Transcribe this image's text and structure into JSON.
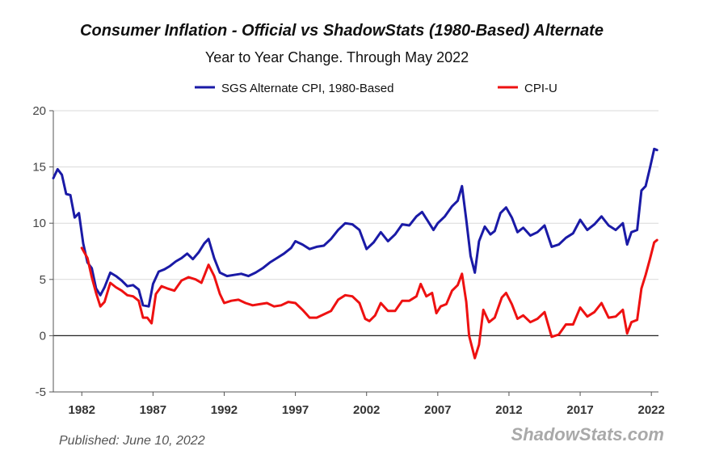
{
  "chart_data": {
    "type": "line",
    "title": "Consumer Inflation - Official vs ShadowStats (1980-Based) Alternate",
    "subtitle": "Year to Year Change. Through May 2022",
    "xlabel": "",
    "ylabel": "",
    "xlim": [
      1980.0,
      2022.5
    ],
    "ylim": [
      -5,
      20
    ],
    "y_ticks": [
      -5,
      0,
      5,
      10,
      15,
      20
    ],
    "x_ticks": [
      1982,
      1987,
      1992,
      1997,
      2002,
      2007,
      2012,
      2017,
      2022
    ],
    "grid": true,
    "legend_position": "top",
    "series": [
      {
        "name": "SGS Alternate CPI, 1980-Based",
        "color": "#1a1aa6",
        "points": [
          [
            1980.0,
            14.0
          ],
          [
            1980.3,
            14.8
          ],
          [
            1980.6,
            14.3
          ],
          [
            1980.9,
            12.6
          ],
          [
            1981.2,
            12.5
          ],
          [
            1981.5,
            10.5
          ],
          [
            1981.8,
            10.9
          ],
          [
            1982.1,
            8.2
          ],
          [
            1982.4,
            6.5
          ],
          [
            1982.7,
            6.0
          ],
          [
            1983.0,
            4.2
          ],
          [
            1983.3,
            3.6
          ],
          [
            1983.6,
            4.3
          ],
          [
            1984.0,
            5.6
          ],
          [
            1984.4,
            5.3
          ],
          [
            1984.8,
            4.9
          ],
          [
            1985.2,
            4.4
          ],
          [
            1985.6,
            4.5
          ],
          [
            1986.0,
            4.1
          ],
          [
            1986.3,
            2.7
          ],
          [
            1986.7,
            2.6
          ],
          [
            1987.0,
            4.6
          ],
          [
            1987.4,
            5.7
          ],
          [
            1987.8,
            5.9
          ],
          [
            1988.2,
            6.2
          ],
          [
            1988.6,
            6.6
          ],
          [
            1989.0,
            6.9
          ],
          [
            1989.4,
            7.3
          ],
          [
            1989.8,
            6.8
          ],
          [
            1990.2,
            7.4
          ],
          [
            1990.6,
            8.2
          ],
          [
            1990.9,
            8.6
          ],
          [
            1991.3,
            6.9
          ],
          [
            1991.7,
            5.6
          ],
          [
            1992.2,
            5.3
          ],
          [
            1992.7,
            5.4
          ],
          [
            1993.2,
            5.5
          ],
          [
            1993.7,
            5.3
          ],
          [
            1994.2,
            5.6
          ],
          [
            1994.7,
            6.0
          ],
          [
            1995.2,
            6.5
          ],
          [
            1995.7,
            6.9
          ],
          [
            1996.2,
            7.3
          ],
          [
            1996.7,
            7.8
          ],
          [
            1997.0,
            8.4
          ],
          [
            1997.5,
            8.1
          ],
          [
            1998.0,
            7.7
          ],
          [
            1998.5,
            7.9
          ],
          [
            1999.0,
            8.0
          ],
          [
            1999.5,
            8.6
          ],
          [
            2000.0,
            9.4
          ],
          [
            2000.5,
            10.0
          ],
          [
            2001.0,
            9.9
          ],
          [
            2001.5,
            9.4
          ],
          [
            2002.0,
            7.7
          ],
          [
            2002.5,
            8.3
          ],
          [
            2003.0,
            9.2
          ],
          [
            2003.5,
            8.4
          ],
          [
            2004.0,
            9.0
          ],
          [
            2004.5,
            9.9
          ],
          [
            2005.0,
            9.8
          ],
          [
            2005.5,
            10.6
          ],
          [
            2005.9,
            11.0
          ],
          [
            2006.3,
            10.2
          ],
          [
            2006.7,
            9.4
          ],
          [
            2007.0,
            10.0
          ],
          [
            2007.5,
            10.6
          ],
          [
            2008.0,
            11.5
          ],
          [
            2008.4,
            12.0
          ],
          [
            2008.7,
            13.3
          ],
          [
            2009.0,
            10.3
          ],
          [
            2009.3,
            7.1
          ],
          [
            2009.6,
            5.6
          ],
          [
            2009.9,
            8.4
          ],
          [
            2010.3,
            9.7
          ],
          [
            2010.7,
            9.0
          ],
          [
            2011.0,
            9.3
          ],
          [
            2011.4,
            10.9
          ],
          [
            2011.8,
            11.4
          ],
          [
            2012.2,
            10.5
          ],
          [
            2012.6,
            9.2
          ],
          [
            2013.0,
            9.6
          ],
          [
            2013.5,
            8.9
          ],
          [
            2014.0,
            9.2
          ],
          [
            2014.5,
            9.8
          ],
          [
            2015.0,
            7.9
          ],
          [
            2015.5,
            8.1
          ],
          [
            2016.0,
            8.7
          ],
          [
            2016.5,
            9.1
          ],
          [
            2017.0,
            10.3
          ],
          [
            2017.5,
            9.4
          ],
          [
            2018.0,
            9.9
          ],
          [
            2018.5,
            10.6
          ],
          [
            2019.0,
            9.8
          ],
          [
            2019.5,
            9.4
          ],
          [
            2020.0,
            10.0
          ],
          [
            2020.3,
            8.1
          ],
          [
            2020.6,
            9.2
          ],
          [
            2021.0,
            9.4
          ],
          [
            2021.3,
            12.9
          ],
          [
            2021.6,
            13.3
          ],
          [
            2021.9,
            14.9
          ],
          [
            2022.2,
            16.6
          ],
          [
            2022.4,
            16.5
          ]
        ]
      },
      {
        "name": "CPI-U",
        "color": "#ee1111",
        "points": [
          [
            1982.0,
            7.8
          ],
          [
            1982.4,
            6.9
          ],
          [
            1982.7,
            5.2
          ],
          [
            1983.0,
            3.8
          ],
          [
            1983.3,
            2.6
          ],
          [
            1983.6,
            3.0
          ],
          [
            1984.0,
            4.7
          ],
          [
            1984.4,
            4.3
          ],
          [
            1984.8,
            4.0
          ],
          [
            1985.2,
            3.6
          ],
          [
            1985.6,
            3.5
          ],
          [
            1986.0,
            3.1
          ],
          [
            1986.3,
            1.6
          ],
          [
            1986.6,
            1.6
          ],
          [
            1986.9,
            1.1
          ],
          [
            1987.2,
            3.7
          ],
          [
            1987.6,
            4.4
          ],
          [
            1988.0,
            4.2
          ],
          [
            1988.5,
            4.0
          ],
          [
            1989.0,
            4.9
          ],
          [
            1989.5,
            5.2
          ],
          [
            1990.0,
            5.0
          ],
          [
            1990.4,
            4.7
          ],
          [
            1990.9,
            6.3
          ],
          [
            1991.3,
            5.3
          ],
          [
            1991.7,
            3.7
          ],
          [
            1992.0,
            2.9
          ],
          [
            1992.5,
            3.1
          ],
          [
            1993.0,
            3.2
          ],
          [
            1993.5,
            2.9
          ],
          [
            1994.0,
            2.7
          ],
          [
            1994.5,
            2.8
          ],
          [
            1995.0,
            2.9
          ],
          [
            1995.5,
            2.6
          ],
          [
            1996.0,
            2.7
          ],
          [
            1996.5,
            3.0
          ],
          [
            1997.0,
            2.9
          ],
          [
            1997.5,
            2.3
          ],
          [
            1998.0,
            1.6
          ],
          [
            1998.5,
            1.6
          ],
          [
            1999.0,
            1.9
          ],
          [
            1999.5,
            2.2
          ],
          [
            2000.0,
            3.2
          ],
          [
            2000.5,
            3.6
          ],
          [
            2001.0,
            3.5
          ],
          [
            2001.5,
            2.9
          ],
          [
            2001.9,
            1.5
          ],
          [
            2002.2,
            1.3
          ],
          [
            2002.6,
            1.8
          ],
          [
            2003.0,
            2.9
          ],
          [
            2003.5,
            2.2
          ],
          [
            2004.0,
            2.2
          ],
          [
            2004.5,
            3.1
          ],
          [
            2005.0,
            3.1
          ],
          [
            2005.5,
            3.5
          ],
          [
            2005.8,
            4.6
          ],
          [
            2006.2,
            3.5
          ],
          [
            2006.6,
            3.8
          ],
          [
            2006.9,
            2.0
          ],
          [
            2007.2,
            2.6
          ],
          [
            2007.6,
            2.8
          ],
          [
            2008.0,
            4.0
          ],
          [
            2008.4,
            4.5
          ],
          [
            2008.7,
            5.5
          ],
          [
            2009.0,
            3.0
          ],
          [
            2009.2,
            0.0
          ],
          [
            2009.6,
            -2.0
          ],
          [
            2009.9,
            -0.8
          ],
          [
            2010.2,
            2.3
          ],
          [
            2010.6,
            1.2
          ],
          [
            2011.0,
            1.6
          ],
          [
            2011.5,
            3.4
          ],
          [
            2011.8,
            3.8
          ],
          [
            2012.2,
            2.8
          ],
          [
            2012.6,
            1.5
          ],
          [
            2013.0,
            1.8
          ],
          [
            2013.5,
            1.2
          ],
          [
            2014.0,
            1.5
          ],
          [
            2014.5,
            2.1
          ],
          [
            2015.0,
            -0.1
          ],
          [
            2015.5,
            0.1
          ],
          [
            2016.0,
            1.0
          ],
          [
            2016.5,
            1.0
          ],
          [
            2017.0,
            2.5
          ],
          [
            2017.5,
            1.7
          ],
          [
            2018.0,
            2.1
          ],
          [
            2018.5,
            2.9
          ],
          [
            2019.0,
            1.6
          ],
          [
            2019.5,
            1.7
          ],
          [
            2020.0,
            2.3
          ],
          [
            2020.3,
            0.2
          ],
          [
            2020.6,
            1.2
          ],
          [
            2021.0,
            1.4
          ],
          [
            2021.3,
            4.2
          ],
          [
            2021.6,
            5.4
          ],
          [
            2021.9,
            6.8
          ],
          [
            2022.2,
            8.3
          ],
          [
            2022.4,
            8.5
          ]
        ]
      }
    ],
    "footnote": "Published: June 10, 2022",
    "watermark": "ShadowStats.com"
  }
}
